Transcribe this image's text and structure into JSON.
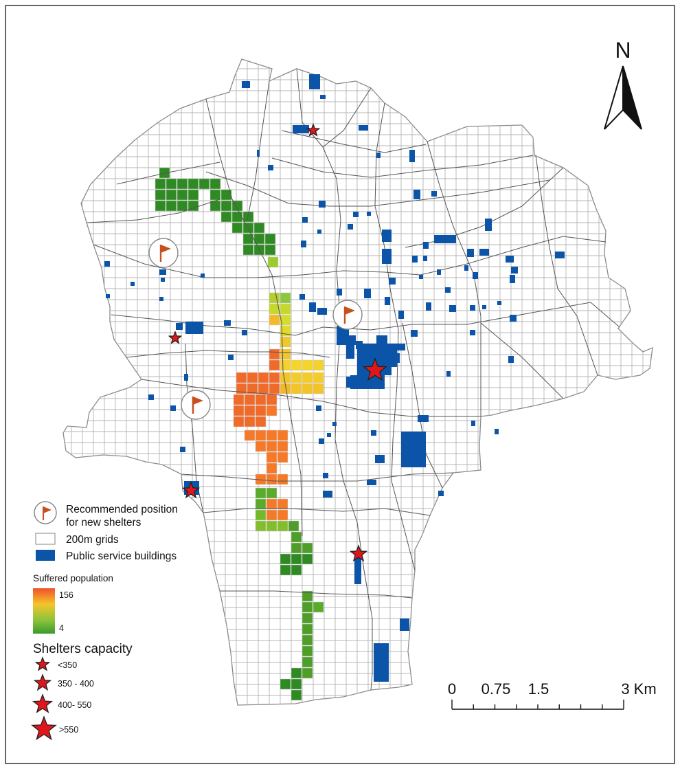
{
  "map": {
    "north_label": "N",
    "colors": {
      "grid_stroke": "#b4b4b4",
      "road_stroke": "#555555",
      "building": "#0b54a8",
      "star_fill": "#e0161b",
      "star_stroke": "#222222",
      "flag": "#c8501c"
    },
    "cells": [
      [
        232,
        244,
        "#2f8a24"
      ],
      [
        226,
        260,
        "#2f8a24"
      ],
      [
        242,
        260,
        "#2f8a24"
      ],
      [
        258,
        260,
        "#2f8a24"
      ],
      [
        274,
        260,
        "#2f8a24"
      ],
      [
        290,
        260,
        "#2f8a24"
      ],
      [
        306,
        260,
        "#2f8a24"
      ],
      [
        226,
        276,
        "#2f8a24"
      ],
      [
        242,
        276,
        "#2f8a24"
      ],
      [
        258,
        276,
        "#2f8a24"
      ],
      [
        274,
        276,
        "#2f8a24"
      ],
      [
        306,
        276,
        "#2f8a24"
      ],
      [
        322,
        276,
        "#2f8a24"
      ],
      [
        226,
        292,
        "#2f8a24"
      ],
      [
        242,
        292,
        "#2f8a24"
      ],
      [
        258,
        292,
        "#2f8a24"
      ],
      [
        274,
        292,
        "#2f8a24"
      ],
      [
        306,
        292,
        "#2f8a24"
      ],
      [
        322,
        292,
        "#2f8a24"
      ],
      [
        338,
        292,
        "#2f8a24"
      ],
      [
        322,
        308,
        "#2f8a24"
      ],
      [
        338,
        308,
        "#2f8a24"
      ],
      [
        354,
        308,
        "#2f8a24"
      ],
      [
        338,
        324,
        "#2f8a24"
      ],
      [
        354,
        324,
        "#2f8a24"
      ],
      [
        370,
        324,
        "#2f8a24"
      ],
      [
        354,
        340,
        "#2f8a24"
      ],
      [
        370,
        340,
        "#2f8a24"
      ],
      [
        386,
        340,
        "#2f8a24"
      ],
      [
        354,
        356,
        "#2f8a24"
      ],
      [
        370,
        356,
        "#2f8a24"
      ],
      [
        386,
        356,
        "#2f8a24"
      ],
      [
        390,
        374,
        "#9ccb2c"
      ],
      [
        392,
        426,
        "#b4cf2c"
      ],
      [
        408,
        426,
        "#8dc63f"
      ],
      [
        392,
        442,
        "#c6d82c"
      ],
      [
        408,
        442,
        "#c6d82c"
      ],
      [
        392,
        458,
        "#f5b928"
      ],
      [
        408,
        458,
        "#d6dc2c"
      ],
      [
        408,
        474,
        "#e0da2a"
      ],
      [
        408,
        490,
        "#f0c828"
      ],
      [
        392,
        508,
        "#f06a2a"
      ],
      [
        408,
        508,
        "#f2c428"
      ],
      [
        392,
        524,
        "#f06a2a"
      ],
      [
        408,
        524,
        "#f4d22a"
      ],
      [
        424,
        524,
        "#f6d42a"
      ],
      [
        440,
        524,
        "#f6d42a"
      ],
      [
        456,
        524,
        "#f4d22a"
      ],
      [
        344,
        542,
        "#f06a2a"
      ],
      [
        360,
        542,
        "#f06a2a"
      ],
      [
        376,
        542,
        "#f06a2a"
      ],
      [
        392,
        542,
        "#f06a2a"
      ],
      [
        408,
        542,
        "#f2c428"
      ],
      [
        424,
        542,
        "#f4cc2a"
      ],
      [
        440,
        542,
        "#f4cc2a"
      ],
      [
        456,
        542,
        "#f4cc2a"
      ],
      [
        344,
        558,
        "#f06a2a"
      ],
      [
        360,
        558,
        "#f06a2a"
      ],
      [
        376,
        558,
        "#f06a2a"
      ],
      [
        392,
        558,
        "#f06a2a"
      ],
      [
        408,
        558,
        "#f0b828"
      ],
      [
        424,
        558,
        "#f2c428"
      ],
      [
        440,
        558,
        "#f2c428"
      ],
      [
        456,
        558,
        "#f2c428"
      ],
      [
        340,
        574,
        "#f06a2a"
      ],
      [
        356,
        574,
        "#f06a2a"
      ],
      [
        372,
        574,
        "#f06a2a"
      ],
      [
        388,
        574,
        "#f06a2a"
      ],
      [
        340,
        590,
        "#f06a2a"
      ],
      [
        356,
        590,
        "#f06a2a"
      ],
      [
        372,
        590,
        "#f06a2a"
      ],
      [
        388,
        590,
        "#f47a2a"
      ],
      [
        340,
        606,
        "#f06a2a"
      ],
      [
        356,
        606,
        "#f06a2a"
      ],
      [
        372,
        606,
        "#f06a2a"
      ],
      [
        356,
        626,
        "#f47a2a"
      ],
      [
        372,
        626,
        "#f47a2a"
      ],
      [
        388,
        626,
        "#f47a2a"
      ],
      [
        404,
        626,
        "#f47a2a"
      ],
      [
        372,
        642,
        "#f47a2a"
      ],
      [
        388,
        642,
        "#f47a2a"
      ],
      [
        404,
        642,
        "#f47a2a"
      ],
      [
        388,
        658,
        "#f47a2a"
      ],
      [
        404,
        658,
        "#f47a2a"
      ],
      [
        388,
        674,
        "#f47a2a"
      ],
      [
        372,
        690,
        "#f47a2a"
      ],
      [
        388,
        690,
        "#f47a2a"
      ],
      [
        404,
        690,
        "#f47a2a"
      ],
      [
        372,
        710,
        "#5aaa2c"
      ],
      [
        388,
        710,
        "#5aaa2c"
      ],
      [
        372,
        726,
        "#5aaa2c"
      ],
      [
        388,
        726,
        "#f47a2a"
      ],
      [
        404,
        726,
        "#f47a2a"
      ],
      [
        372,
        742,
        "#74b82c"
      ],
      [
        388,
        742,
        "#f47a2a"
      ],
      [
        404,
        742,
        "#f47a2a"
      ],
      [
        372,
        758,
        "#82be2c"
      ],
      [
        388,
        758,
        "#82be2c"
      ],
      [
        404,
        758,
        "#82be2c"
      ],
      [
        420,
        758,
        "#4f9e2a"
      ],
      [
        424,
        774,
        "#4f9e2a"
      ],
      [
        424,
        790,
        "#4f9e2a"
      ],
      [
        440,
        790,
        "#4f9e2a"
      ],
      [
        408,
        806,
        "#2f8a24"
      ],
      [
        424,
        806,
        "#2f8a24"
      ],
      [
        440,
        806,
        "#2f8a24"
      ],
      [
        408,
        822,
        "#2f8a24"
      ],
      [
        424,
        822,
        "#2f8a24"
      ],
      [
        440,
        860,
        "#4f9e2a"
      ],
      [
        440,
        876,
        "#4f9e2a"
      ],
      [
        456,
        876,
        "#5aaa2c"
      ],
      [
        440,
        892,
        "#4f9e2a"
      ],
      [
        440,
        908,
        "#4f9e2a"
      ],
      [
        440,
        924,
        "#4f9e2a"
      ],
      [
        440,
        940,
        "#4f9e2a"
      ],
      [
        440,
        956,
        "#4f9e2a"
      ],
      [
        424,
        972,
        "#2f8a24"
      ],
      [
        440,
        972,
        "#4f9e2a"
      ],
      [
        408,
        988,
        "#2f8a24"
      ],
      [
        424,
        988,
        "#2f8a24"
      ],
      [
        424,
        1004,
        "#2f8a24"
      ]
    ],
    "buildings": [
      [
        352,
        118,
        12,
        10
      ],
      [
        450,
        108,
        16,
        22
      ],
      [
        466,
        138,
        8,
        6
      ],
      [
        426,
        182,
        24,
        12
      ],
      [
        522,
        182,
        14,
        8
      ],
      [
        374,
        218,
        4,
        10
      ],
      [
        390,
        240,
        8,
        8
      ],
      [
        464,
        292,
        10,
        10
      ],
      [
        440,
        316,
        8,
        8
      ],
      [
        548,
        222,
        6,
        8
      ],
      [
        596,
        218,
        8,
        18
      ],
      [
        602,
        276,
        10,
        14
      ],
      [
        628,
        278,
        8,
        8
      ],
      [
        514,
        308,
        8,
        8
      ],
      [
        534,
        308,
        6,
        6
      ],
      [
        506,
        326,
        8,
        8
      ],
      [
        462,
        334,
        6,
        6
      ],
      [
        438,
        350,
        8,
        10
      ],
      [
        556,
        334,
        14,
        18
      ],
      [
        556,
        362,
        14,
        22
      ],
      [
        600,
        372,
        8,
        10
      ],
      [
        616,
        372,
        6,
        8
      ],
      [
        632,
        342,
        32,
        12
      ],
      [
        706,
        318,
        10,
        18
      ],
      [
        680,
        362,
        10,
        12
      ],
      [
        736,
        372,
        12,
        10
      ],
      [
        744,
        388,
        10,
        10
      ],
      [
        742,
        400,
        8,
        12
      ],
      [
        698,
        362,
        14,
        10
      ],
      [
        808,
        366,
        14,
        10
      ],
      [
        616,
        352,
        8,
        10
      ],
      [
        566,
        404,
        10,
        10
      ],
      [
        530,
        420,
        10,
        14
      ],
      [
        490,
        420,
        8,
        10
      ],
      [
        450,
        440,
        10,
        14
      ],
      [
        462,
        448,
        14,
        10
      ],
      [
        436,
        428,
        8,
        8
      ],
      [
        560,
        432,
        8,
        12
      ],
      [
        580,
        452,
        8,
        12
      ],
      [
        620,
        440,
        8,
        12
      ],
      [
        654,
        444,
        10,
        10
      ],
      [
        742,
        458,
        10,
        10
      ],
      [
        724,
        438,
        6,
        6
      ],
      [
        688,
        396,
        8,
        10
      ],
      [
        676,
        386,
        6,
        8
      ],
      [
        636,
        392,
        6,
        8
      ],
      [
        610,
        400,
        6,
        6
      ],
      [
        648,
        418,
        8,
        8
      ],
      [
        684,
        444,
        8,
        8
      ],
      [
        702,
        444,
        6,
        6
      ],
      [
        684,
        480,
        8,
        8
      ],
      [
        740,
        518,
        8,
        10
      ],
      [
        650,
        540,
        6,
        8
      ],
      [
        598,
        480,
        10,
        10
      ],
      [
        516,
        456,
        10,
        10
      ],
      [
        494,
        464,
        8,
        8
      ],
      [
        490,
        474,
        18,
        18
      ],
      [
        518,
        496,
        10,
        12
      ],
      [
        270,
        468,
        26,
        18
      ],
      [
        256,
        470,
        10,
        10
      ],
      [
        326,
        466,
        10,
        8
      ],
      [
        152,
        380,
        8,
        8
      ],
      [
        232,
        392,
        10,
        8
      ],
      [
        234,
        404,
        6,
        6
      ],
      [
        292,
        398,
        6,
        6
      ],
      [
        154,
        428,
        6,
        6
      ],
      [
        232,
        432,
        6,
        6
      ],
      [
        190,
        410,
        6,
        6
      ],
      [
        268,
        544,
        6,
        10
      ],
      [
        332,
        516,
        8,
        8
      ],
      [
        352,
        480,
        8,
        8
      ],
      [
        216,
        574,
        8,
        8
      ],
      [
        248,
        590,
        8,
        8
      ],
      [
        262,
        650,
        8,
        8
      ],
      [
        268,
        700,
        22,
        20
      ],
      [
        460,
        590,
        8,
        8
      ],
      [
        464,
        638,
        8,
        8
      ],
      [
        470,
        714,
        14,
        10
      ],
      [
        476,
        630,
        6,
        6
      ],
      [
        484,
        614,
        6,
        6
      ],
      [
        534,
        698,
        14,
        8
      ],
      [
        546,
        662,
        14,
        12
      ],
      [
        540,
        626,
        8,
        8
      ],
      [
        584,
        628,
        36,
        52
      ],
      [
        608,
        604,
        16,
        10
      ],
      [
        686,
        612,
        6,
        8
      ],
      [
        720,
        624,
        6,
        8
      ],
      [
        516,
        810,
        10,
        40
      ],
      [
        582,
        900,
        14,
        18
      ],
      [
        544,
        936,
        22,
        56
      ],
      [
        470,
        688,
        8,
        8
      ],
      [
        638,
        714,
        8,
        8
      ],
      [
        504,
        548,
        54,
        16
      ]
    ],
    "service_complex": [
      [
        490,
        488,
        28,
        14
      ],
      [
        504,
        502,
        12,
        20
      ],
      [
        520,
        500,
        58,
        34
      ],
      [
        520,
        534,
        50,
        12
      ],
      [
        510,
        546,
        50,
        20
      ],
      [
        548,
        488,
        16,
        12
      ],
      [
        576,
        500,
        14,
        10
      ],
      [
        570,
        514,
        12,
        14
      ]
    ],
    "shelters": [
      [
        456,
        190,
        9
      ],
      [
        255,
        492,
        9
      ],
      [
        278,
        714,
        12
      ],
      [
        522,
        806,
        12
      ],
      [
        546,
        539,
        17
      ]
    ],
    "recommended_sites": [
      [
        238,
        368
      ],
      [
        506,
        458
      ],
      [
        285,
        589
      ]
    ]
  },
  "legend": {
    "recommended_label_line1": "Recommended position",
    "recommended_label_line2": "for new shelters",
    "grids_label": "200m grids",
    "buildings_label": "Public service buildings",
    "population_title": "Suffered population",
    "population_max": "156",
    "population_min": "4",
    "gradient_colors": [
      "#f0502a",
      "#f6c428",
      "#8cc43c",
      "#3a9a2c"
    ],
    "capacity_title": "Shelters capacity",
    "capacity_classes": [
      "<350",
      "350 - 400",
      "400- 550",
      ">550"
    ]
  },
  "scale_bar": {
    "ticks": [
      "0",
      "0.75",
      "1.5",
      "3 Km"
    ]
  }
}
